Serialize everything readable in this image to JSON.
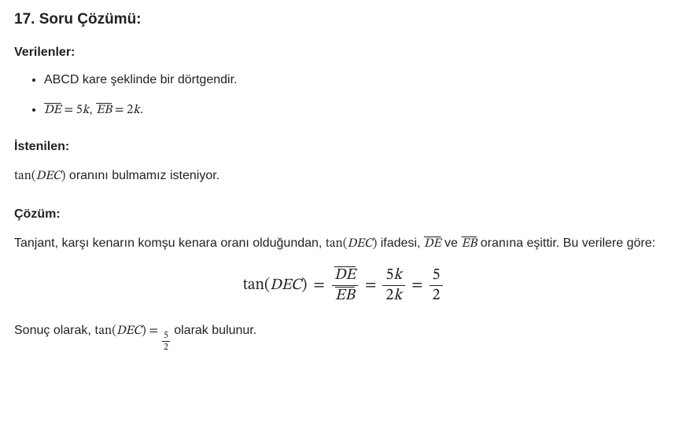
{
  "title": "17. Soru Çözümü:",
  "given_heading": "Verilenler:",
  "bullets": {
    "b1": "ABCD kare şeklinde bir dörtgendir.",
    "b2_de": "DE",
    "b2_eq1": " = 5",
    "b2_k1": "k",
    "b2_comma": ", ",
    "b2_eb": "EB",
    "b2_eq2": " = 2",
    "b2_k2": "k",
    "b2_dot": "."
  },
  "wanted_heading": "İstenilen:",
  "wanted_line": {
    "tan": "tan(",
    "dec": "DEC",
    "close": ")",
    "rest": " oranını bulmamız isteniyor."
  },
  "sol_heading": "Çözüm:",
  "sol_para": {
    "p1": "Tanjant, karşı kenarın komşu kenara oranı olduğundan, ",
    "tan": "tan(",
    "dec": "DEC",
    "close": ")",
    "p2": " ifadesi, ",
    "de": "DE",
    "and": " ve ",
    "eb": "EB",
    "p3": " oranına eşittir. Bu verilere göre:"
  },
  "eq": {
    "lhs_tan": "tan(",
    "lhs_dec": "DEC",
    "lhs_close": ")",
    "eq": "=",
    "f1_num": "DE",
    "f1_den": "EB",
    "f2_num_a": "5",
    "f2_num_b": "k",
    "f2_den_a": "2",
    "f2_den_b": "k",
    "f3_num": "5",
    "f3_den": "2"
  },
  "conclusion": {
    "p1": "Sonuç olarak, ",
    "tan": "tan(",
    "dec": "DEC",
    "close": ")",
    "eq": " = ",
    "num": "5",
    "den": "2",
    "p2": " olarak bulunur."
  },
  "colors": {
    "text": "#222222",
    "bg": "#ffffff"
  },
  "fontsizes": {
    "title": 19,
    "subhead": 16,
    "body": 16,
    "display": 20,
    "smallfrac": 12
  }
}
